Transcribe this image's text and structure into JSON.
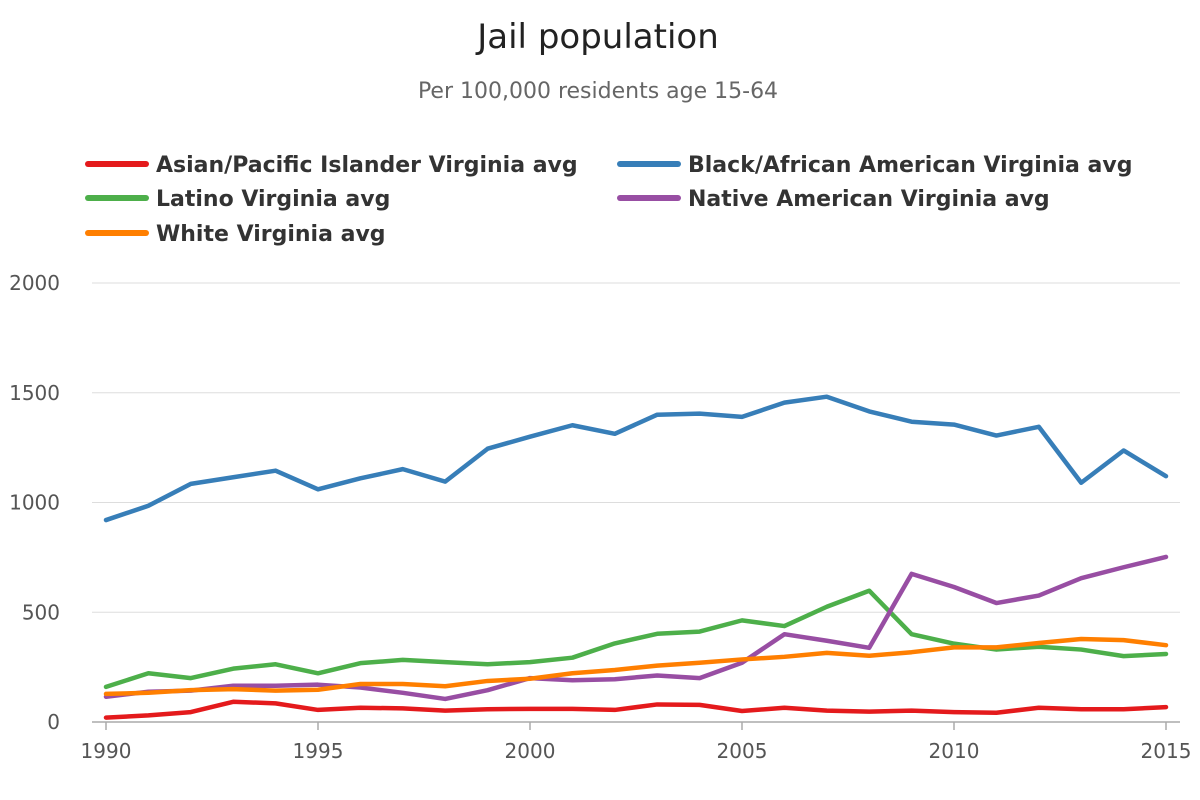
{
  "chart_data": {
    "type": "line",
    "title": "Jail population",
    "subtitle": "Per 100,000 residents age 15-64",
    "xlabel": "",
    "ylabel": "",
    "xlim": [
      1990,
      2015
    ],
    "ylim": [
      0,
      2000
    ],
    "x_ticks": [
      1990,
      1995,
      2000,
      2005,
      2010,
      2015
    ],
    "y_ticks": [
      0,
      500,
      1000,
      1500,
      2000
    ],
    "grid": true,
    "legend_position": "top",
    "x": [
      1990,
      1991,
      1992,
      1993,
      1994,
      1995,
      1996,
      1997,
      1998,
      1999,
      2000,
      2001,
      2002,
      2003,
      2004,
      2005,
      2006,
      2007,
      2008,
      2009,
      2010,
      2011,
      2012,
      2013,
      2014,
      2015
    ],
    "series": [
      {
        "name": "Asian/Pacific Islander Virginia avg",
        "color": "#e41a1c",
        "values": [
          20,
          30,
          45,
          92,
          85,
          55,
          65,
          62,
          52,
          58,
          60,
          60,
          55,
          80,
          78,
          50,
          65,
          52,
          47,
          52,
          45,
          42,
          65,
          58,
          58,
          68
        ]
      },
      {
        "name": "Black/African American Virginia avg",
        "color": "#377eb8",
        "values": [
          920,
          985,
          1085,
          1115,
          1145,
          1060,
          1110,
          1152,
          1095,
          1245,
          1300,
          1352,
          1313,
          1400,
          1405,
          1390,
          1455,
          1482,
          1415,
          1368,
          1355,
          1305,
          1345,
          1090,
          1237,
          1120
        ]
      },
      {
        "name": "Latino Virginia avg",
        "color": "#4daf4a",
        "values": [
          160,
          222,
          200,
          243,
          263,
          222,
          268,
          283,
          273,
          263,
          273,
          293,
          358,
          402,
          412,
          463,
          437,
          525,
          598,
          400,
          357,
          330,
          343,
          330,
          300,
          310
        ]
      },
      {
        "name": "Native American Virginia avg",
        "color": "#984ea3",
        "values": [
          115,
          138,
          143,
          165,
          165,
          170,
          157,
          133,
          105,
          145,
          200,
          190,
          195,
          212,
          200,
          270,
          400,
          370,
          338,
          675,
          615,
          542,
          576,
          655,
          705,
          752
        ]
      },
      {
        "name": "White Virginia avg",
        "color": "#ff7f00",
        "values": [
          128,
          133,
          145,
          150,
          143,
          147,
          173,
          173,
          163,
          187,
          197,
          222,
          237,
          257,
          270,
          285,
          297,
          315,
          302,
          318,
          340,
          340,
          360,
          378,
          373,
          350
        ]
      }
    ]
  }
}
